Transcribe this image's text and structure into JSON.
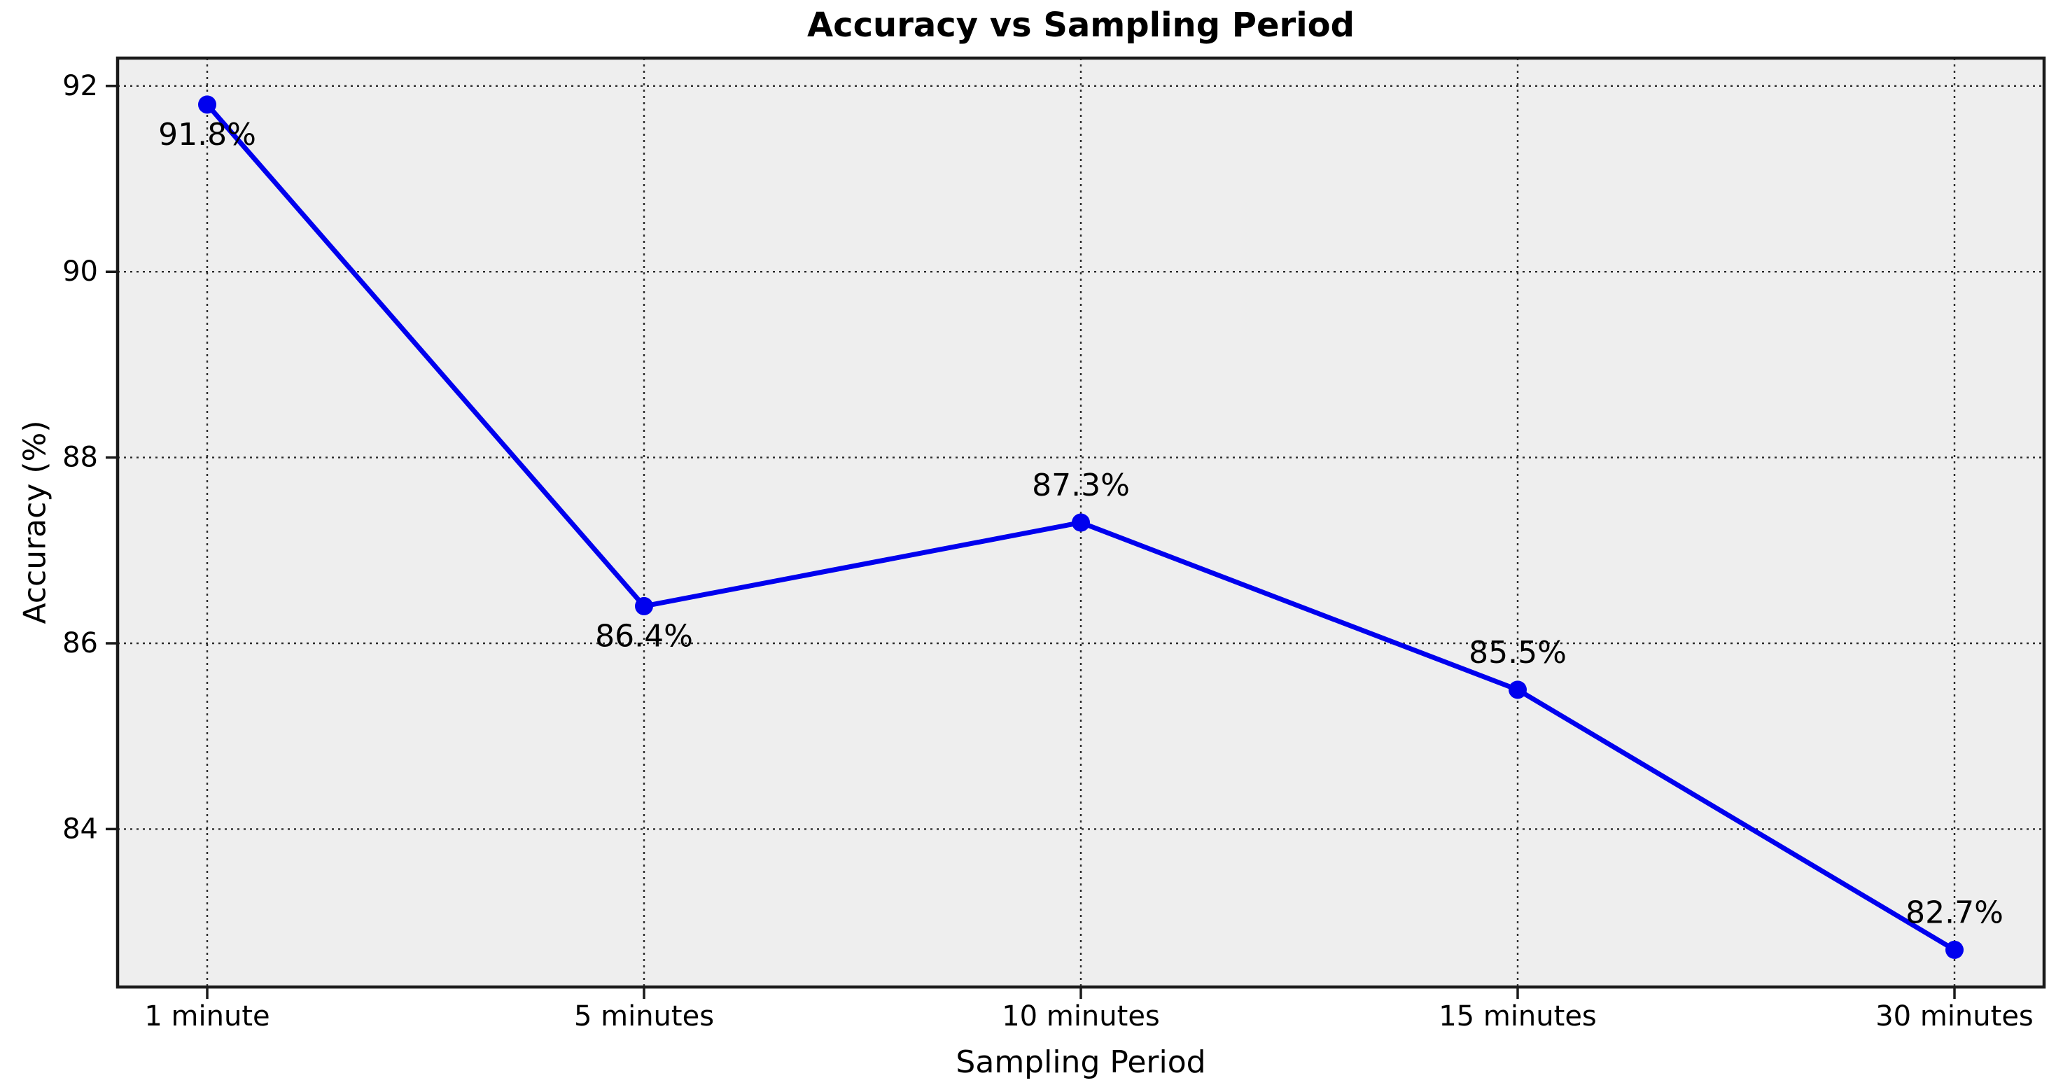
{
  "chart_data": {
    "type": "line",
    "title": "Accuracy vs Sampling Period",
    "xlabel": "Sampling Period",
    "ylabel": "Accuracy (%)",
    "categories": [
      "1 minute",
      "5 minutes",
      "10 minutes",
      "15 minutes",
      "30 minutes"
    ],
    "series": [
      {
        "name": "Accuracy",
        "values": [
          91.8,
          86.4,
          87.3,
          85.5,
          82.7
        ],
        "point_labels": [
          "91.8%",
          "86.4%",
          "87.3%",
          "85.5%",
          "82.7%"
        ],
        "point_label_side": [
          "below",
          "below",
          "above",
          "above",
          "above"
        ],
        "color": "#0000ee"
      }
    ],
    "yticks": [
      84,
      86,
      88,
      90,
      92
    ],
    "ylim": [
      82.3,
      92.3
    ],
    "grid": {
      "style": "dotted",
      "horizontal": true,
      "vertical": true,
      "color": "#2b2b2b"
    },
    "legend": "none",
    "marker": "circle",
    "plot_background": "#eeeeee",
    "spine_color": "#1a1a1a",
    "text_color": "#000000"
  }
}
